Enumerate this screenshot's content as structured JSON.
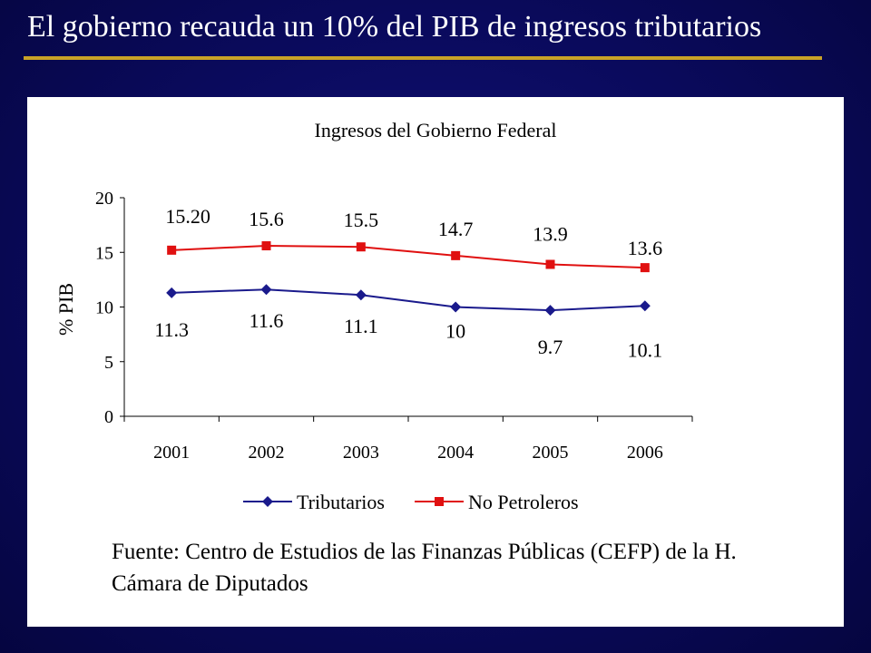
{
  "slide": {
    "title": "El gobierno recauda un 10% del PIB de ingresos tributarios",
    "source_line1": "Fuente: Centro de Estudios de las Finanzas Públicas (CEFP) de la H.",
    "source_line2": "Cámara de Diputados"
  },
  "colors": {
    "background": "#0a0a5c",
    "title_rule": "#c9a227",
    "tributarios": "#1a1a8c",
    "no_petroleros": "#e01010"
  },
  "chart_data": {
    "type": "line",
    "title": "Ingresos del Gobierno Federal",
    "xlabel": "",
    "ylabel": "% PIB",
    "categories": [
      "2001",
      "2002",
      "2003",
      "2004",
      "2005",
      "2006"
    ],
    "ylim": [
      0,
      20
    ],
    "yticks": [
      0,
      5,
      10,
      15,
      20
    ],
    "grid": false,
    "legend_position": "bottom",
    "series": [
      {
        "name": "Tributarios",
        "marker": "diamond",
        "color": "#1a1a8c",
        "values": [
          11.3,
          11.6,
          11.1,
          10,
          9.7,
          10.1
        ],
        "labels": [
          "11.3",
          "11.6",
          "11.1",
          "10",
          "9.7",
          "10.1"
        ]
      },
      {
        "name": "No Petroleros",
        "marker": "square",
        "color": "#e01010",
        "values": [
          15.2,
          15.6,
          15.5,
          14.7,
          13.9,
          13.6
        ],
        "labels": [
          "15.20",
          "15.6",
          "15.5",
          "14.7",
          "13.9",
          "13.6"
        ]
      }
    ]
  }
}
